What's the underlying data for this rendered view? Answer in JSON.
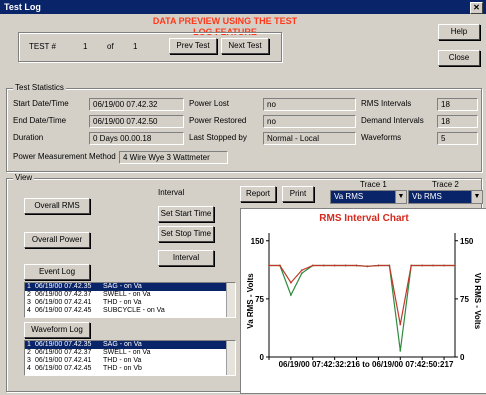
{
  "window": {
    "title": "Test Log",
    "colors": {
      "title_bar": "#0a246a",
      "banner": "#ff3a1a",
      "chart_title": "#d42a1e"
    }
  },
  "banner": {
    "line1": "DATA PREVIEW USING THE TEST",
    "line2": "LOG FEATURE"
  },
  "test_nav": {
    "label": "TEST #",
    "current": "1",
    "of_label": "of",
    "total": "1",
    "prev_label": "Prev Test",
    "next_label": "Next Test"
  },
  "buttons": {
    "help": "Help",
    "close": "Close"
  },
  "test_statistics": {
    "group_label": "Test Statistics",
    "start_label": "Start Date/Time",
    "start_value": "06/19/00 07.42.32",
    "end_label": "End Date/Time",
    "end_value": "06/19/00 07.42.50",
    "duration_label": "Duration",
    "duration_value": "0 Days 00.00.18",
    "power_lost_label": "Power Lost",
    "power_lost_value": "no",
    "power_restored_label": "Power Restored",
    "power_restored_value": "no",
    "last_stopped_label": "Last Stopped by",
    "last_stopped_value": "Normal - Local",
    "rms_intervals_label": "RMS Intervals",
    "rms_intervals_value": "18",
    "demand_intervals_label": "Demand Intervals",
    "demand_intervals_value": "18",
    "waveforms_label": "Waveforms",
    "waveforms_value": "5",
    "method_label": "Power Measurement Method",
    "method_value": "4 Wire Wye 3 Wattmeter"
  },
  "view": {
    "group_label": "View",
    "overall_rms": "Overall RMS",
    "overall_power": "Overall Power",
    "event_log": "Event Log",
    "waveform_log": "Waveform Log",
    "interval_label": "Interval",
    "set_start_time": "Set Start Time",
    "set_stop_time": "Set Stop Time",
    "interval_btn": "Interval",
    "report": "Report",
    "print": "Print",
    "trace1_label": "Trace 1",
    "trace1_value": "Va RMS",
    "trace2_label": "Trace 2",
    "trace2_value": "Vb RMS"
  },
  "event_log": {
    "rows": [
      {
        "n": "1",
        "time": "06/19/00 07.42.35",
        "desc": "SAG - on Va"
      },
      {
        "n": "2",
        "time": "06/19/00 07.42.37",
        "desc": "SWELL - on Va"
      },
      {
        "n": "3",
        "time": "06/19/00 07.42.41",
        "desc": "THD - on Va"
      },
      {
        "n": "4",
        "time": "06/19/00 07.42.45",
        "desc": "SUBCYCLE - on Va"
      }
    ]
  },
  "waveform_log": {
    "rows": [
      {
        "n": "1",
        "time": "06/19/00 07.42.35",
        "desc": "SAG - on Va"
      },
      {
        "n": "2",
        "time": "06/19/00 07.42.37",
        "desc": "SWELL - on Va"
      },
      {
        "n": "3",
        "time": "06/19/00 07.42.41",
        "desc": "THD - on Va"
      },
      {
        "n": "4",
        "time": "06/19/00 07.42.45",
        "desc": "THD - on Vb"
      }
    ]
  },
  "chart_data": {
    "type": "line",
    "title": "RMS Interval Chart",
    "ylabel_left": "Va RMS - Volts",
    "ylabel_right": "Vb RMS - Volts",
    "xlabel": "06/19/00 07:42:32:216 to 06/19/00 07:42:50:217",
    "y_ticks": [
      "150",
      "75",
      "0"
    ],
    "ylim": [
      0,
      160
    ],
    "x": [
      0,
      1,
      2,
      3,
      4,
      5,
      6,
      7,
      8,
      9,
      10,
      11,
      12,
      13,
      14,
      15,
      16,
      17
    ],
    "series": [
      {
        "name": "Va RMS",
        "color": "#c0392b",
        "values": [
          118,
          118,
          96,
          112,
          118,
          118,
          118,
          118,
          118,
          117,
          118,
          118,
          42,
          118,
          118,
          118,
          118,
          118
        ]
      },
      {
        "name": "Vb RMS",
        "color": "#2e8b3e",
        "values": [
          118,
          118,
          80,
          108,
          118,
          118,
          118,
          118,
          118,
          117,
          118,
          118,
          8,
          118,
          118,
          118,
          118,
          118
        ]
      }
    ]
  }
}
